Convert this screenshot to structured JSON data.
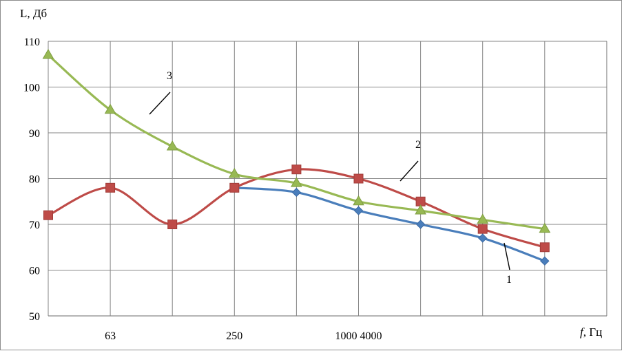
{
  "chart_data": {
    "type": "line",
    "ylabel": "L, Дб",
    "xlabel_italic": "f",
    "xlabel_rest": ", Гц",
    "ylim": [
      50,
      110
    ],
    "yticks": [
      50,
      60,
      70,
      80,
      90,
      100,
      110
    ],
    "grid": true,
    "x_positions": [
      1,
      2,
      3,
      4,
      5,
      6,
      7,
      8,
      9
    ],
    "x_tick_labels": [
      {
        "text": "63",
        "at": 2
      },
      {
        "text": "250",
        "at": 4
      },
      {
        "text": "1000  4000",
        "at": 6
      }
    ],
    "series": [
      {
        "label": "1",
        "color": "#4a7ebb",
        "marker": "diamond",
        "x": [
          4,
          5,
          6,
          7,
          8,
          9
        ],
        "values": [
          78,
          77,
          73,
          70,
          67,
          62
        ]
      },
      {
        "label": "2",
        "color": "#be4b48",
        "marker": "square",
        "x": [
          1,
          2,
          3,
          4,
          5,
          6,
          7,
          8,
          9
        ],
        "values": [
          72,
          78,
          70,
          78,
          82,
          80,
          75,
          69,
          65
        ]
      },
      {
        "label": "3",
        "color": "#98b954",
        "marker": "triangle",
        "x": [
          1,
          2,
          3,
          4,
          5,
          6,
          7,
          8,
          9
        ],
        "values": [
          107,
          95,
          87,
          81,
          79,
          75,
          73,
          71,
          69
        ]
      }
    ]
  }
}
